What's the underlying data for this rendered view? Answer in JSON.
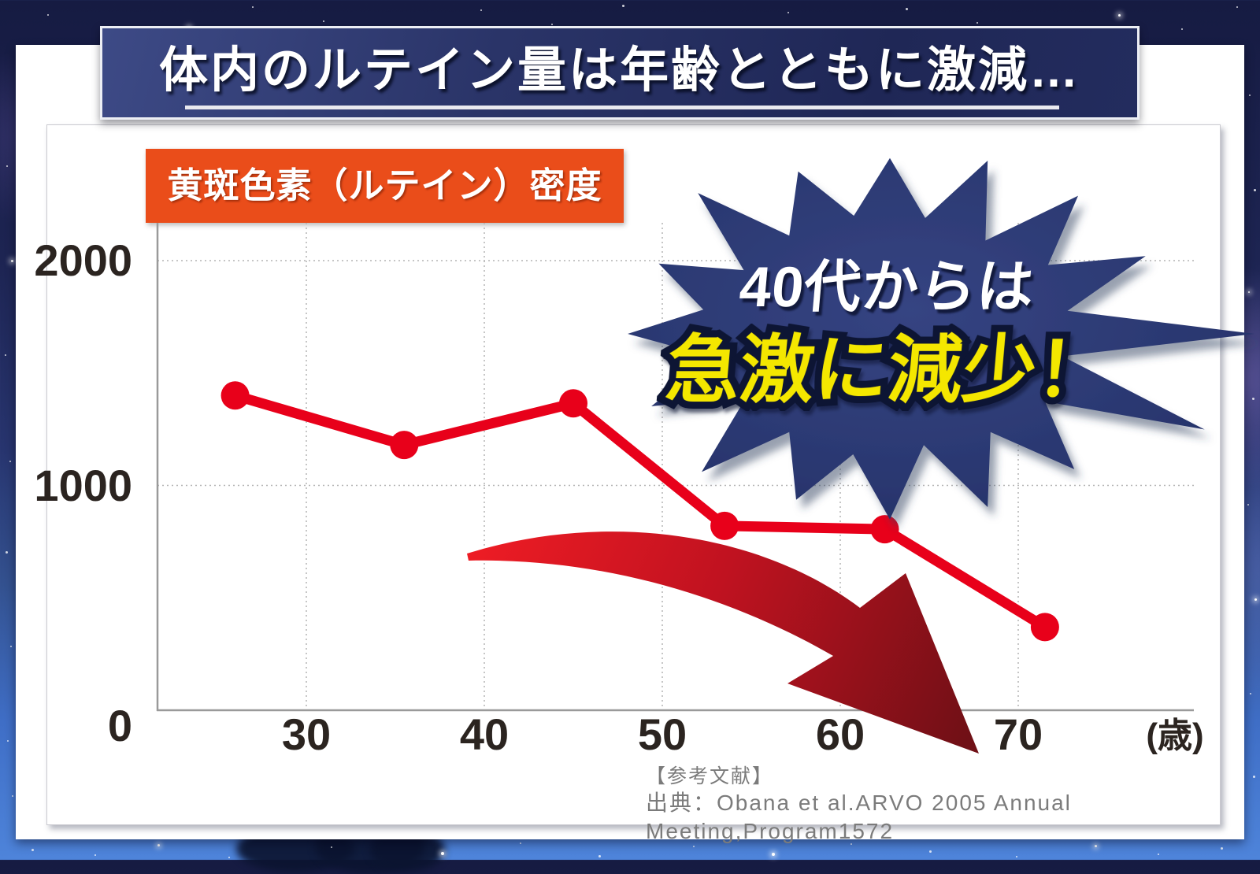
{
  "title_banner": {
    "text": "体内のルテイン量は年齢とともに激減…"
  },
  "chart_label": {
    "text": "黄斑色素（ルテイン）密度"
  },
  "callout": {
    "line1": "40代からは",
    "line2": "急激に減少！"
  },
  "reference": {
    "line1": "【参考文献】",
    "line2": "出典：Obana et al.ARVO 2005 Annual Meeting,Program1572"
  },
  "chart_data": {
    "type": "line",
    "title": "黄斑色素（ルテイン）密度",
    "series_name": "黄斑色素（ルテイン）密度",
    "x": [
      26,
      35.5,
      45,
      53.5,
      62.5,
      71.5
    ],
    "values": [
      1400,
      1180,
      1365,
      820,
      805,
      370
    ],
    "x_ticks": [
      30,
      40,
      50,
      60,
      70
    ],
    "y_ticks": [
      0,
      1000,
      2000
    ],
    "xlabel": "(歳)",
    "ylabel": "",
    "xlim": [
      21.5,
      80
    ],
    "ylim": [
      0,
      2170
    ],
    "grid": "dotted",
    "legend": "none",
    "marker": "circle"
  },
  "colors": {
    "line_red": "#e8001a",
    "arrow_red_start": "#ed1c24",
    "arrow_red_end": "#701016",
    "banner_navy": "#232c5e",
    "starburst_navy": "#2c3a74",
    "highlight_yellow": "#f4e700",
    "label_orange": "#ea4d1a",
    "axis_text": "#2b2420",
    "grid_gray": "#b4b4b4",
    "reference_gray": "#7b7b7b",
    "sky_bottom_blue": "#4e84da"
  }
}
